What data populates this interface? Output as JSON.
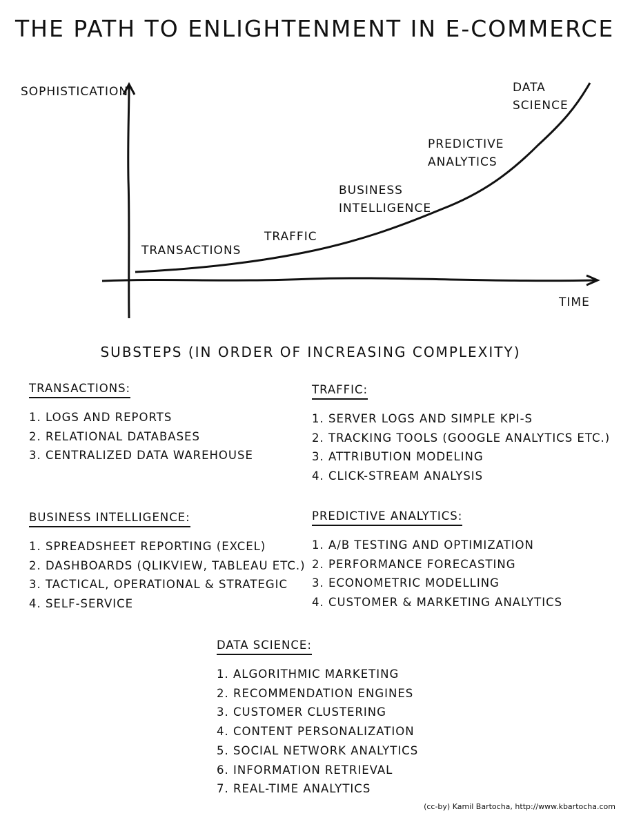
{
  "title": "THE PATH TO ENLIGHTENMENT IN E-COMMERCE",
  "chart": {
    "ylabel": "SOPHISTICATION",
    "xlabel": "TIME",
    "stages": [
      {
        "line1": "TRANSACTIONS",
        "line2": ""
      },
      {
        "line1": "TRAFFIC",
        "line2": ""
      },
      {
        "line1": "BUSINESS",
        "line2": "INTELLIGENCE"
      },
      {
        "line1": "PREDICTIVE",
        "line2": "ANALYTICS"
      },
      {
        "line1": "DATA",
        "line2": "SCIENCE"
      }
    ]
  },
  "subtitle": "SUBSTEPS (IN ORDER OF INCREASING COMPLEXITY)",
  "sections": {
    "transactions": {
      "heading": "TRANSACTIONS:",
      "items": [
        "1. LOGS AND REPORTS",
        "2. RELATIONAL DATABASES",
        "3. CENTRALIZED DATA WAREHOUSE"
      ]
    },
    "traffic": {
      "heading": "TRAFFIC:",
      "items": [
        "1. SERVER LOGS AND SIMPLE KPI-S",
        "2. TRACKING TOOLS (GOOGLE ANALYTICS ETC.)",
        "3. ATTRIBUTION MODELING",
        "4. CLICK-STREAM ANALYSIS"
      ]
    },
    "bi": {
      "heading": "BUSINESS INTELLIGENCE:",
      "items": [
        "1. SPREADSHEET REPORTING (EXCEL)",
        "2. DASHBOARDS (QLIKVIEW, TABLEAU ETC.)",
        "3. TACTICAL, OPERATIONAL & STRATEGIC",
        "4. SELF-SERVICE"
      ]
    },
    "predictive": {
      "heading": "PREDICTIVE ANALYTICS:",
      "items": [
        "1. A/B TESTING AND OPTIMIZATION",
        "2. PERFORMANCE FORECASTING",
        "3. ECONOMETRIC MODELLING",
        "4. CUSTOMER & MARKETING ANALYTICS"
      ]
    },
    "datascience": {
      "heading": "DATA SCIENCE:",
      "items": [
        "1. ALGORITHMIC MARKETING",
        "2. RECOMMENDATION ENGINES",
        "3. CUSTOMER CLUSTERING",
        "4. CONTENT PERSONALIZATION",
        "5. SOCIAL NETWORK ANALYTICS",
        "6. INFORMATION RETRIEVAL",
        "7. REAL-TIME ANALYTICS"
      ]
    }
  },
  "credit": "(cc-by) Kamil Bartocha, http://www.kbartocha.com"
}
